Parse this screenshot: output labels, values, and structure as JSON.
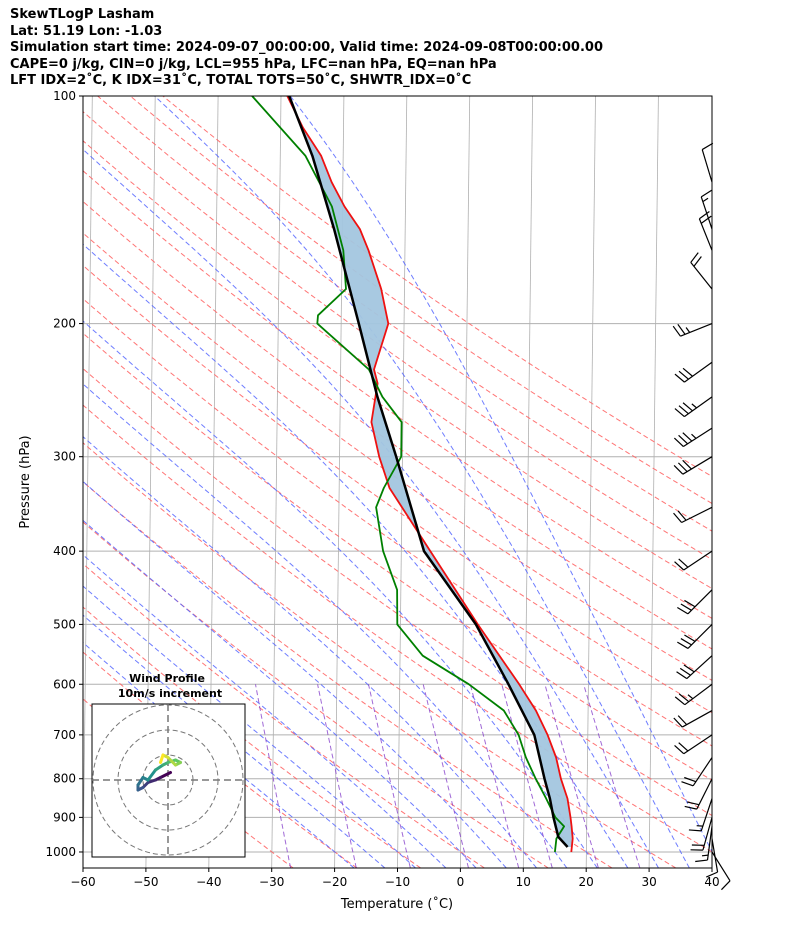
{
  "header": {
    "line1": "SkewTLogP Lasham",
    "line2": "Lat: 51.19   Lon: -1.03",
    "line3": "Simulation start time: 2024-09-07_00:00:00, Valid time: 2024-09-08T00:00:00.00",
    "line4": "CAPE=0 j/kg, CIN=0 j/kg, LCL=955 hPa, LFC=nan hPa, EQ=nan hPa",
    "line5": "LFT IDX=2˚C, K IDX=31˚C, TOTAL TOTS=50˚C, SHWTR_IDX=0˚C"
  },
  "colors": {
    "temperature": "#ee1111",
    "dewpoint": "#008000",
    "parcel": "#000000",
    "cape_fill": "#a3c6df",
    "dry_adiabat": "#ff6666",
    "moist_adiabat": "#5566ff",
    "isotherm": "#b0b0b0",
    "mixing_ratio": "#8844cc",
    "grid": "#b0b0b0"
  },
  "chart_data": {
    "type": "skew-t",
    "title": "SkewTLogP Lasham",
    "xlabel": "Temperature (˚C)",
    "ylabel": "Pressure (hPa)",
    "xlim": [
      -60,
      40
    ],
    "ylim": [
      1050,
      100
    ],
    "x_ticks": [
      -60,
      -50,
      -40,
      -30,
      -20,
      -10,
      0,
      10,
      20,
      30,
      40
    ],
    "x_tick_labels": [
      "−60",
      "−50",
      "−40",
      "−30",
      "−20",
      "−10",
      "0",
      "10",
      "20",
      "30",
      "40"
    ],
    "y_ticks": [
      1000,
      900,
      800,
      700,
      600,
      500,
      400,
      300,
      200,
      100
    ],
    "y_tick_labels": [
      "1000",
      "900",
      "800",
      "700",
      "600",
      "500",
      "400",
      "300",
      "200",
      "100"
    ],
    "series": [
      {
        "name": "Temperature",
        "pressure": [
          1000,
          960,
          925,
          900,
          850,
          800,
          750,
          700,
          650,
          600,
          500,
          400,
          330,
          300,
          270,
          240,
          230,
          200,
          180,
          160,
          150,
          140,
          130,
          120,
          110,
          100
        ],
        "values": [
          17.6,
          17.8,
          17.6,
          17.4,
          16.9,
          15.8,
          15.0,
          13.6,
          11.7,
          9.0,
          2.3,
          -5.4,
          -12.0,
          -13.7,
          -15.0,
          -14.1,
          -14.7,
          -12.5,
          -13.7,
          -15.8,
          -17.2,
          -19.7,
          -21.8,
          -23.5,
          -26.5,
          -29.0
        ]
      },
      {
        "name": "Dewpoint",
        "pressure": [
          1000,
          960,
          925,
          900,
          850,
          800,
          750,
          700,
          650,
          600,
          550,
          500,
          450,
          400,
          350,
          330,
          300,
          270,
          250,
          230,
          200,
          195,
          180,
          160,
          140,
          120,
          100
        ],
        "values": [
          15.0,
          15.2,
          16.4,
          15.0,
          13.5,
          11.8,
          10.2,
          9.0,
          6.6,
          1.0,
          -6.4,
          -10.5,
          -10.6,
          -12.9,
          -14.1,
          -12.9,
          -10.2,
          -10.2,
          -13.3,
          -15.5,
          -23.8,
          -23.7,
          -19.3,
          -19.8,
          -21.7,
          -26.0,
          -34.6
        ]
      },
      {
        "name": "Parcel profile",
        "pressure": [
          985,
          955,
          900,
          850,
          800,
          700,
          600,
          500,
          400,
          300,
          250,
          200,
          150,
          120,
          100
        ],
        "values": [
          17.0,
          15.5,
          14.7,
          14.1,
          13.2,
          11.5,
          7.3,
          2.0,
          -6.4,
          -11.0,
          -14.1,
          -17.2,
          -21.3,
          -24.9,
          -28.7
        ]
      }
    ],
    "shaded_region": "CAPE / CIN area between parcel profile and temperature",
    "wind_barbs": {
      "pressure": [
        1000,
        960,
        925,
        900,
        850,
        800,
        750,
        700,
        650,
        600,
        550,
        500,
        450,
        400,
        350,
        300,
        275,
        250,
        225,
        200,
        180,
        160,
        150,
        130
      ],
      "u_knots": [
        -5,
        -2,
        2,
        5,
        5,
        10,
        12,
        15,
        18,
        20,
        22,
        22,
        20,
        18,
        20,
        25,
        28,
        28,
        25,
        25,
        12,
        8,
        5,
        3
      ],
      "v_knots": [
        8,
        12,
        15,
        18,
        15,
        20,
        18,
        10,
        10,
        15,
        20,
        22,
        20,
        12,
        10,
        15,
        18,
        20,
        18,
        10,
        -15,
        -20,
        -15,
        -10
      ]
    },
    "hodograph": {
      "title": "Wind Profile",
      "subtitle": "10m/s increment",
      "colormap": "viridis",
      "u_ms": [
        1,
        -3,
        -5,
        -8,
        -10,
        -12,
        -12,
        -10,
        -8,
        -5,
        -2,
        0,
        3,
        5,
        3,
        0,
        -2,
        -3
      ],
      "v_ms": [
        3,
        1,
        0,
        -1,
        -3,
        -4,
        -2,
        1,
        0,
        4,
        6,
        7,
        8,
        7,
        6,
        9,
        10,
        7
      ]
    }
  }
}
